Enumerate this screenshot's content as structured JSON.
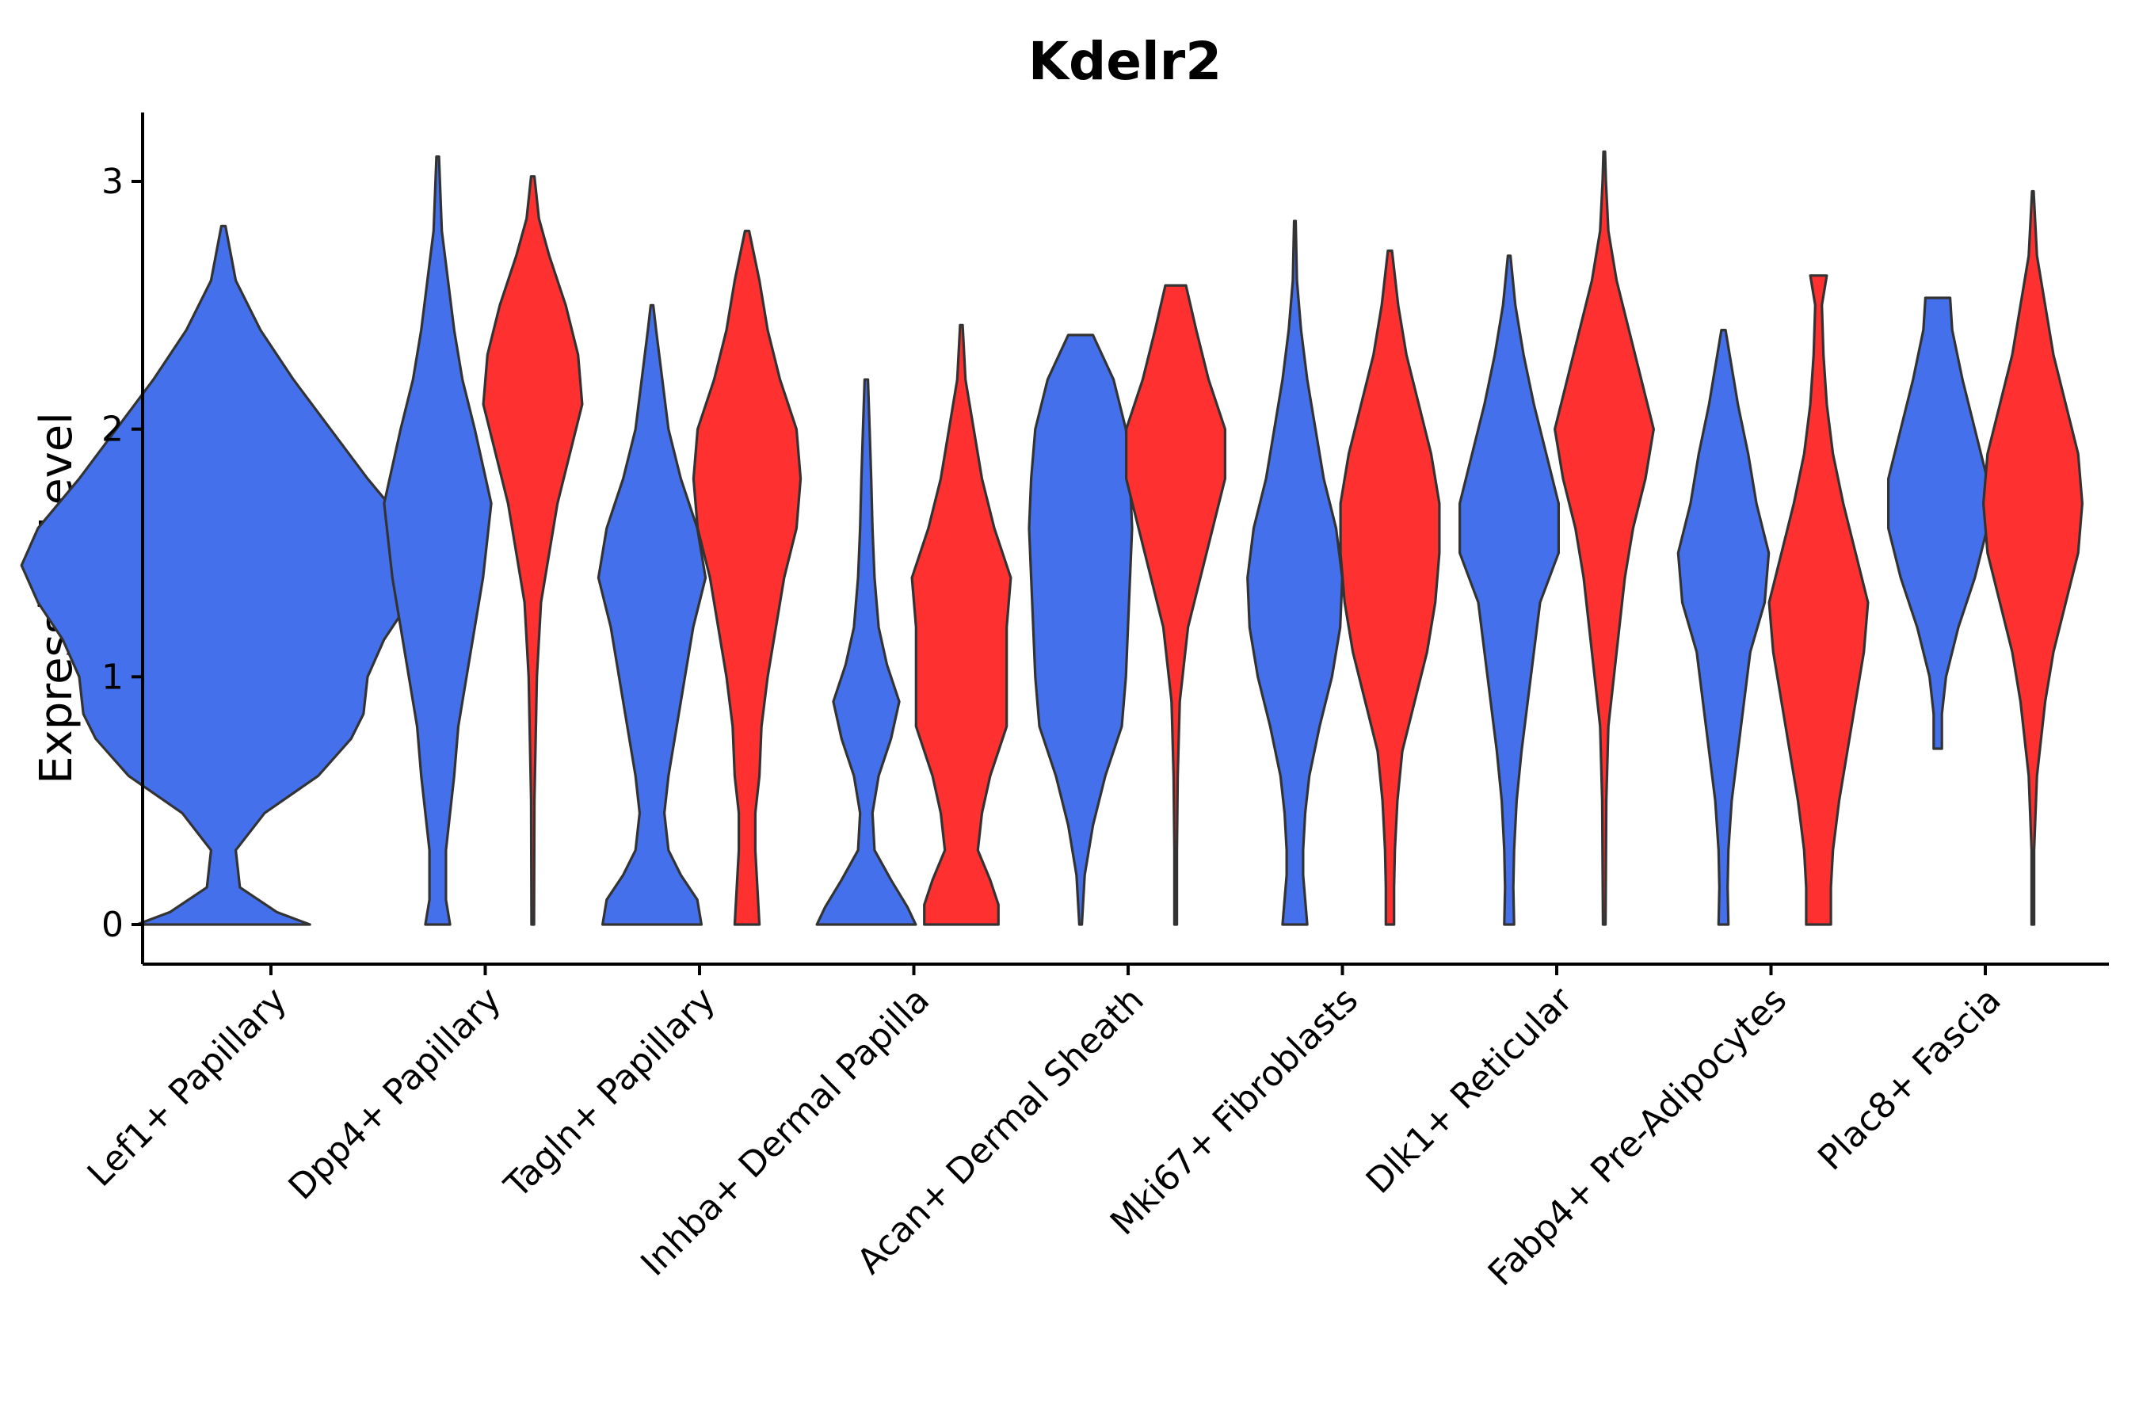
{
  "chart_data": {
    "type": "violin",
    "title": "Kdelr2",
    "xlabel": "",
    "ylabel": "Expression Level",
    "ylim": [
      -0.15,
      3.28
    ],
    "yticks": [
      0,
      1,
      2,
      3
    ],
    "grid": false,
    "legend": "none",
    "colors": {
      "group_a": "#4470ec",
      "group_b": "#ff3030",
      "outline": "#333333"
    },
    "categories": [
      "Lef1+ Papillary",
      "Dpp4+ Papillary",
      "Tagln+ Papillary",
      "Inhba+ Dermal Papilla",
      "Acan+ Dermal Sheath",
      "Mki67+ Fibroblasts",
      "Dlk1+ Reticular",
      "Fabp4+ Pre-Adipocytes",
      "Plac8+ Fascia"
    ],
    "violins": [
      {
        "category": "Lef1+ Papillary",
        "group": "a",
        "color": "#4470ec",
        "profile": [
          [
            0,
            0.21
          ],
          [
            0.05,
            0.13
          ],
          [
            0.15,
            0.04
          ],
          [
            0.3,
            0.03
          ],
          [
            0.45,
            0.1
          ],
          [
            0.6,
            0.23
          ],
          [
            0.75,
            0.31
          ],
          [
            0.85,
            0.34
          ],
          [
            1.0,
            0.35
          ],
          [
            1.15,
            0.39
          ],
          [
            1.3,
            0.45
          ],
          [
            1.45,
            0.49
          ],
          [
            1.6,
            0.45
          ],
          [
            1.8,
            0.35
          ],
          [
            2.0,
            0.26
          ],
          [
            2.2,
            0.17
          ],
          [
            2.4,
            0.09
          ],
          [
            2.6,
            0.03
          ],
          [
            2.82,
            0.005
          ]
        ]
      },
      {
        "category": "Dpp4+ Papillary",
        "group": "a",
        "color": "#4470ec",
        "profile": [
          [
            0,
            0.03
          ],
          [
            0.1,
            0.02
          ],
          [
            0.2,
            0.02
          ],
          [
            0.3,
            0.02
          ],
          [
            0.45,
            0.03
          ],
          [
            0.6,
            0.04
          ],
          [
            0.8,
            0.05
          ],
          [
            1.0,
            0.07
          ],
          [
            1.2,
            0.09
          ],
          [
            1.4,
            0.11
          ],
          [
            1.55,
            0.12
          ],
          [
            1.7,
            0.13
          ],
          [
            1.85,
            0.11
          ],
          [
            2.0,
            0.09
          ],
          [
            2.2,
            0.06
          ],
          [
            2.4,
            0.04
          ],
          [
            2.6,
            0.025
          ],
          [
            2.8,
            0.01
          ],
          [
            3.1,
            0.003
          ]
        ]
      },
      {
        "category": "Dpp4+ Papillary",
        "group": "b",
        "color": "#ff3030",
        "profile": [
          [
            0,
            0.003
          ],
          [
            0.5,
            0.004
          ],
          [
            1.0,
            0.01
          ],
          [
            1.3,
            0.02
          ],
          [
            1.5,
            0.04
          ],
          [
            1.7,
            0.06
          ],
          [
            1.9,
            0.09
          ],
          [
            2.1,
            0.12
          ],
          [
            2.3,
            0.11
          ],
          [
            2.5,
            0.08
          ],
          [
            2.7,
            0.04
          ],
          [
            2.85,
            0.015
          ],
          [
            3.02,
            0.004
          ]
        ]
      },
      {
        "category": "Tagln+ Papillary",
        "group": "a",
        "color": "#4470ec",
        "profile": [
          [
            0,
            0.12
          ],
          [
            0.1,
            0.11
          ],
          [
            0.2,
            0.07
          ],
          [
            0.3,
            0.04
          ],
          [
            0.45,
            0.03
          ],
          [
            0.6,
            0.04
          ],
          [
            0.8,
            0.06
          ],
          [
            1.0,
            0.08
          ],
          [
            1.2,
            0.1
          ],
          [
            1.4,
            0.13
          ],
          [
            1.6,
            0.11
          ],
          [
            1.8,
            0.07
          ],
          [
            2.0,
            0.04
          ],
          [
            2.2,
            0.025
          ],
          [
            2.4,
            0.01
          ],
          [
            2.5,
            0.003
          ]
        ]
      },
      {
        "category": "Tagln+ Papillary",
        "group": "b",
        "color": "#ff3030",
        "profile": [
          [
            0,
            0.03
          ],
          [
            0.15,
            0.025
          ],
          [
            0.3,
            0.02
          ],
          [
            0.45,
            0.02
          ],
          [
            0.6,
            0.03
          ],
          [
            0.8,
            0.035
          ],
          [
            1.0,
            0.05
          ],
          [
            1.2,
            0.07
          ],
          [
            1.4,
            0.09
          ],
          [
            1.6,
            0.12
          ],
          [
            1.8,
            0.13
          ],
          [
            2.0,
            0.12
          ],
          [
            2.2,
            0.08
          ],
          [
            2.4,
            0.05
          ],
          [
            2.6,
            0.03
          ],
          [
            2.8,
            0.005
          ]
        ]
      },
      {
        "category": "Inhba+ Dermal Papilla",
        "group": "a",
        "color": "#4470ec",
        "profile": [
          [
            0,
            0.12
          ],
          [
            0.07,
            0.1
          ],
          [
            0.18,
            0.06
          ],
          [
            0.3,
            0.02
          ],
          [
            0.45,
            0.015
          ],
          [
            0.6,
            0.03
          ],
          [
            0.75,
            0.06
          ],
          [
            0.9,
            0.08
          ],
          [
            1.05,
            0.05
          ],
          [
            1.2,
            0.03
          ],
          [
            1.4,
            0.02
          ],
          [
            1.6,
            0.015
          ],
          [
            1.8,
            0.012
          ],
          [
            2.0,
            0.008
          ],
          [
            2.2,
            0.004
          ]
        ]
      },
      {
        "category": "Inhba+ Dermal Papilla",
        "group": "b",
        "color": "#ff3030",
        "profile": [
          [
            0,
            0.09
          ],
          [
            0.08,
            0.09
          ],
          [
            0.18,
            0.07
          ],
          [
            0.3,
            0.04
          ],
          [
            0.45,
            0.05
          ],
          [
            0.6,
            0.07
          ],
          [
            0.8,
            0.11
          ],
          [
            1.0,
            0.11
          ],
          [
            1.2,
            0.11
          ],
          [
            1.4,
            0.12
          ],
          [
            1.6,
            0.08
          ],
          [
            1.8,
            0.05
          ],
          [
            2.0,
            0.03
          ],
          [
            2.2,
            0.01
          ],
          [
            2.42,
            0.003
          ]
        ]
      },
      {
        "category": "Acan+ Dermal Sheath",
        "group": "a",
        "color": "#4470ec",
        "profile": [
          [
            0,
            0.003
          ],
          [
            0.2,
            0.01
          ],
          [
            0.4,
            0.03
          ],
          [
            0.6,
            0.06
          ],
          [
            0.8,
            0.1
          ],
          [
            1.0,
            0.11
          ],
          [
            1.2,
            0.115
          ],
          [
            1.4,
            0.12
          ],
          [
            1.6,
            0.125
          ],
          [
            1.8,
            0.12
          ],
          [
            2.0,
            0.11
          ],
          [
            2.2,
            0.08
          ],
          [
            2.38,
            0.03
          ]
        ]
      },
      {
        "category": "Acan+ Dermal Sheath",
        "group": "b",
        "color": "#ff3030",
        "profile": [
          [
            0,
            0.003
          ],
          [
            0.3,
            0.003
          ],
          [
            0.6,
            0.005
          ],
          [
            0.9,
            0.01
          ],
          [
            1.2,
            0.03
          ],
          [
            1.4,
            0.06
          ],
          [
            1.6,
            0.09
          ],
          [
            1.8,
            0.12
          ],
          [
            2.0,
            0.12
          ],
          [
            2.2,
            0.08
          ],
          [
            2.4,
            0.05
          ],
          [
            2.58,
            0.025
          ]
        ]
      },
      {
        "category": "Mki67+ Fibroblasts",
        "group": "a",
        "color": "#4470ec",
        "profile": [
          [
            0,
            0.03
          ],
          [
            0.1,
            0.025
          ],
          [
            0.2,
            0.02
          ],
          [
            0.3,
            0.02
          ],
          [
            0.45,
            0.025
          ],
          [
            0.6,
            0.035
          ],
          [
            0.8,
            0.06
          ],
          [
            1.0,
            0.09
          ],
          [
            1.2,
            0.11
          ],
          [
            1.4,
            0.115
          ],
          [
            1.6,
            0.1
          ],
          [
            1.8,
            0.07
          ],
          [
            2.0,
            0.05
          ],
          [
            2.2,
            0.03
          ],
          [
            2.4,
            0.015
          ],
          [
            2.6,
            0.005
          ],
          [
            2.84,
            0.002
          ]
        ]
      },
      {
        "category": "Mki67+ Fibroblasts",
        "group": "b",
        "color": "#ff3030",
        "profile": [
          [
            0,
            0.01
          ],
          [
            0.15,
            0.01
          ],
          [
            0.3,
            0.012
          ],
          [
            0.5,
            0.018
          ],
          [
            0.7,
            0.03
          ],
          [
            0.9,
            0.06
          ],
          [
            1.1,
            0.09
          ],
          [
            1.3,
            0.11
          ],
          [
            1.5,
            0.12
          ],
          [
            1.7,
            0.12
          ],
          [
            1.9,
            0.1
          ],
          [
            2.1,
            0.07
          ],
          [
            2.3,
            0.04
          ],
          [
            2.5,
            0.02
          ],
          [
            2.72,
            0.005
          ]
        ]
      },
      {
        "category": "Dlk1+ Reticular",
        "group": "a",
        "color": "#4470ec",
        "profile": [
          [
            0,
            0.012
          ],
          [
            0.15,
            0.01
          ],
          [
            0.3,
            0.012
          ],
          [
            0.5,
            0.018
          ],
          [
            0.7,
            0.03
          ],
          [
            0.9,
            0.045
          ],
          [
            1.1,
            0.06
          ],
          [
            1.3,
            0.075
          ],
          [
            1.5,
            0.12
          ],
          [
            1.7,
            0.12
          ],
          [
            1.9,
            0.09
          ],
          [
            2.1,
            0.06
          ],
          [
            2.3,
            0.035
          ],
          [
            2.5,
            0.015
          ],
          [
            2.7,
            0.003
          ]
        ]
      },
      {
        "category": "Dlk1+ Reticular",
        "group": "b",
        "color": "#ff3030",
        "profile": [
          [
            0,
            0.003
          ],
          [
            0.5,
            0.005
          ],
          [
            0.8,
            0.01
          ],
          [
            1.1,
            0.03
          ],
          [
            1.4,
            0.05
          ],
          [
            1.6,
            0.07
          ],
          [
            1.8,
            0.1
          ],
          [
            2.0,
            0.12
          ],
          [
            2.2,
            0.09
          ],
          [
            2.4,
            0.06
          ],
          [
            2.6,
            0.03
          ],
          [
            2.8,
            0.01
          ],
          [
            3.0,
            0.004
          ],
          [
            3.12,
            0.002
          ]
        ]
      },
      {
        "category": "Fabp4+ Pre-Adipocytes",
        "group": "a",
        "color": "#4470ec",
        "profile": [
          [
            0,
            0.012
          ],
          [
            0.15,
            0.01
          ],
          [
            0.3,
            0.012
          ],
          [
            0.5,
            0.02
          ],
          [
            0.7,
            0.035
          ],
          [
            0.9,
            0.05
          ],
          [
            1.1,
            0.065
          ],
          [
            1.3,
            0.1
          ],
          [
            1.5,
            0.11
          ],
          [
            1.7,
            0.08
          ],
          [
            1.9,
            0.06
          ],
          [
            2.1,
            0.035
          ],
          [
            2.3,
            0.015
          ],
          [
            2.4,
            0.005
          ]
        ]
      },
      {
        "category": "Fabp4+ Pre-Adipocytes",
        "group": "b",
        "color": "#ff3030",
        "profile": [
          [
            0,
            0.03
          ],
          [
            0.15,
            0.03
          ],
          [
            0.3,
            0.035
          ],
          [
            0.5,
            0.05
          ],
          [
            0.7,
            0.07
          ],
          [
            0.9,
            0.09
          ],
          [
            1.1,
            0.11
          ],
          [
            1.3,
            0.12
          ],
          [
            1.5,
            0.09
          ],
          [
            1.7,
            0.06
          ],
          [
            1.9,
            0.035
          ],
          [
            2.1,
            0.02
          ],
          [
            2.3,
            0.012
          ],
          [
            2.5,
            0.008
          ],
          [
            2.62,
            0.02
          ]
        ]
      },
      {
        "category": "Plac8+ Fascia",
        "group": "a",
        "color": "#4470ec",
        "profile": [
          [
            0.71,
            0.01
          ],
          [
            0.85,
            0.01
          ],
          [
            1.0,
            0.02
          ],
          [
            1.2,
            0.05
          ],
          [
            1.4,
            0.09
          ],
          [
            1.6,
            0.12
          ],
          [
            1.8,
            0.12
          ],
          [
            2.0,
            0.09
          ],
          [
            2.2,
            0.06
          ],
          [
            2.4,
            0.035
          ],
          [
            2.53,
            0.03
          ]
        ]
      },
      {
        "category": "Plac8+ Fascia",
        "group": "b",
        "color": "#ff3030",
        "profile": [
          [
            0,
            0.003
          ],
          [
            0.3,
            0.003
          ],
          [
            0.6,
            0.01
          ],
          [
            0.9,
            0.03
          ],
          [
            1.1,
            0.05
          ],
          [
            1.3,
            0.08
          ],
          [
            1.5,
            0.11
          ],
          [
            1.7,
            0.12
          ],
          [
            1.9,
            0.11
          ],
          [
            2.1,
            0.08
          ],
          [
            2.3,
            0.05
          ],
          [
            2.5,
            0.03
          ],
          [
            2.7,
            0.01
          ],
          [
            2.96,
            0.002
          ]
        ]
      }
    ]
  }
}
